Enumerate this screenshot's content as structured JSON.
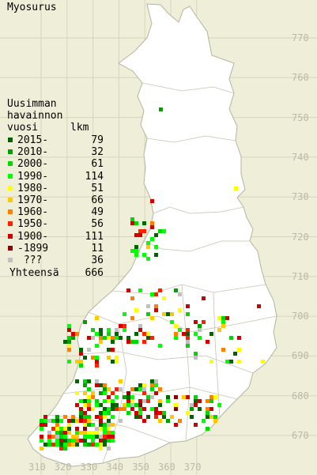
{
  "title": "Myosurus",
  "legend": {
    "header_lines": [
      "Uusimman",
      "havainnon",
      "vuosi"
    ],
    "count_header": "lkm",
    "items": [
      {
        "label": "2015-",
        "count": "79",
        "color": "#006400"
      },
      {
        "label": "2010-",
        "count": "32",
        "color": "#00a000"
      },
      {
        "label": "2000-",
        "count": "61",
        "color": "#00d800"
      },
      {
        "label": "1990-",
        "count": "114",
        "color": "#00ff00"
      },
      {
        "label": "1980-",
        "count": "51",
        "color": "#ffff00"
      },
      {
        "label": "1970-",
        "count": "66",
        "color": "#ffc800"
      },
      {
        "label": "1960-",
        "count": "49",
        "color": "#ff8000"
      },
      {
        "label": "1950-",
        "count": "56",
        "color": "#ff2000"
      },
      {
        "label": "1900-",
        "count": "111",
        "color": "#d00000"
      },
      {
        "label": "-1899",
        "count": "11",
        "color": "#8b0000"
      },
      {
        "label": " ???",
        "count": "36",
        "color": "#c0c0c0"
      }
    ],
    "total_label": "Yhteensä",
    "total_count": "666"
  },
  "grid": {
    "y_labels": [
      "770",
      "760",
      "750",
      "740",
      "730",
      "720",
      "710",
      "700",
      "690",
      "680",
      "670"
    ],
    "x_labels": [
      "310",
      "320",
      "330",
      "340",
      "350",
      "360",
      "370"
    ],
    "line_color": "#d6d6bd"
  },
  "colors": {
    "background": "#efefd9",
    "land": "#ffffff",
    "border": "#b4b4a0"
  }
}
